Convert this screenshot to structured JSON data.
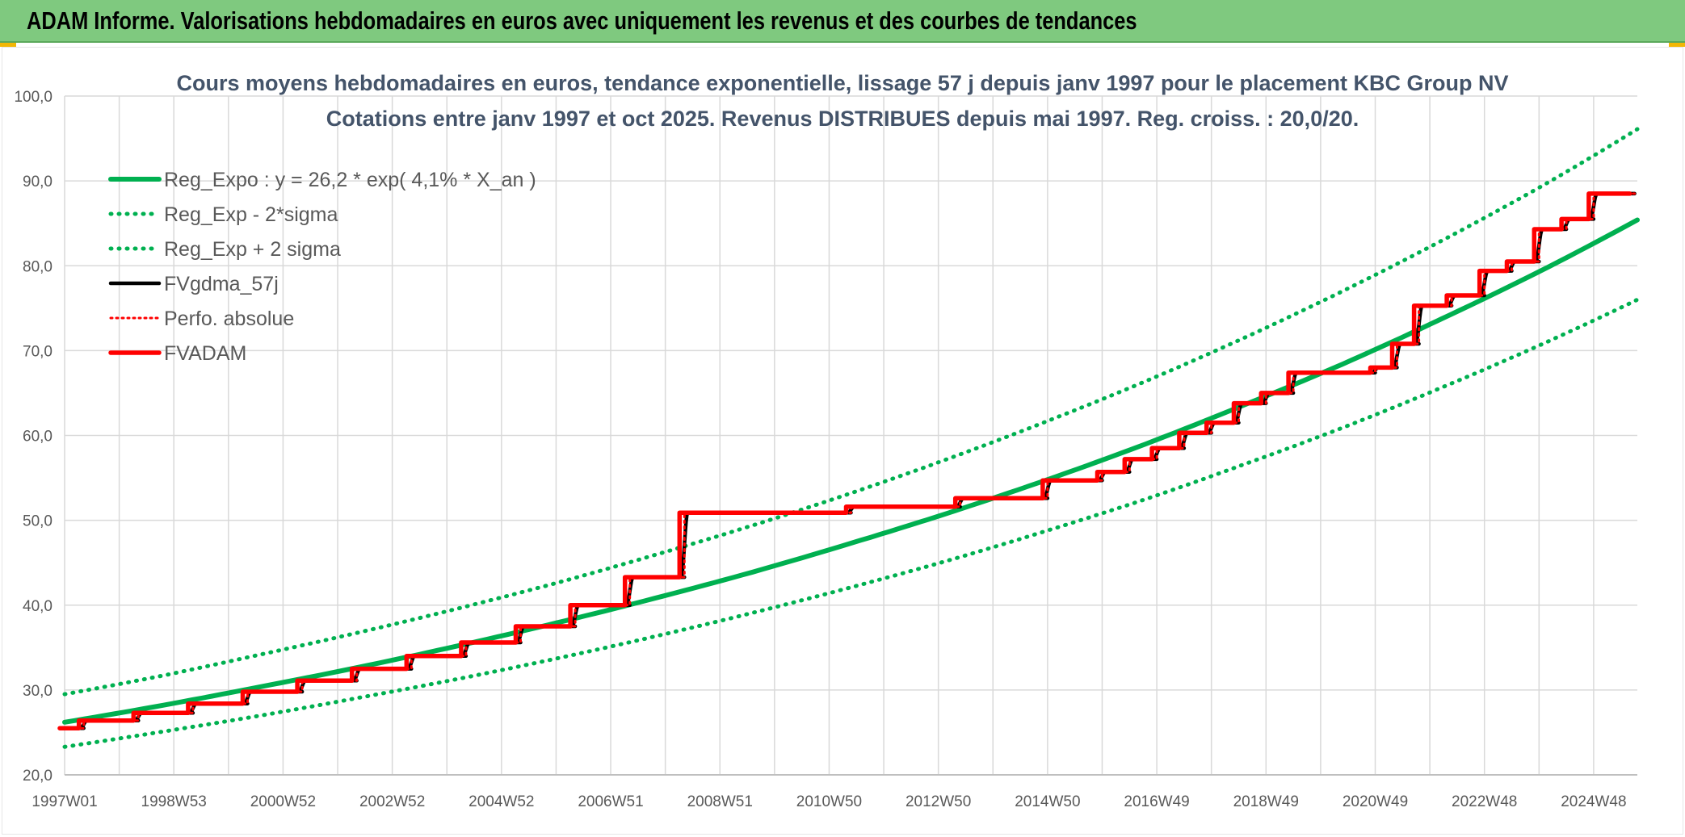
{
  "header": {
    "title": "ADAM Informe. Valorisations hebdomadaires en euros avec uniquement les revenus et des courbes de tendances"
  },
  "colors": {
    "header_bg": "#7fc97f",
    "green": "#00b050",
    "red": "#ff0000",
    "black": "#000000",
    "grid": "#d9d9d9",
    "title": "#44546a",
    "corner": "#f2b705"
  },
  "chart_data": {
    "type": "line",
    "title": "Cours moyens hebdomadaires en euros, tendance exponentielle, lissage 57 j depuis janv 1997 pour le placement KBC Group NV",
    "subtitle": "Cotations entre janv 1997 et oct 2025. Revenus DISTRIBUES depuis mai 1997. Reg. croiss. : 20,0/20.",
    "xlabel": "",
    "ylabel": "",
    "x_range": [
      1997.0,
      2025.8
    ],
    "ylim": [
      20,
      100
    ],
    "y_ticks": [
      "20,0",
      "30,0",
      "40,0",
      "50,0",
      "60,0",
      "70,0",
      "80,0",
      "90,0",
      "100,0"
    ],
    "x_ticks": [
      {
        "label": "1997W01",
        "x": 1997.0
      },
      {
        "label": "1998W53",
        "x": 1999.0
      },
      {
        "label": "2000W52",
        "x": 2001.0
      },
      {
        "label": "2002W52",
        "x": 2003.0
      },
      {
        "label": "2004W52",
        "x": 2005.0
      },
      {
        "label": "2006W51",
        "x": 2007.0
      },
      {
        "label": "2008W51",
        "x": 2009.0
      },
      {
        "label": "2010W50",
        "x": 2011.0
      },
      {
        "label": "2012W50",
        "x": 2013.0
      },
      {
        "label": "2014W50",
        "x": 2015.0
      },
      {
        "label": "2016W49",
        "x": 2017.0
      },
      {
        "label": "2018W49",
        "x": 2019.0
      },
      {
        "label": "2020W49",
        "x": 2021.0
      },
      {
        "label": "2022W48",
        "x": 2023.0
      },
      {
        "label": "2024W48",
        "x": 2025.0
      }
    ],
    "grid": true,
    "legend_position": "top-left",
    "regression": {
      "a": 26.2,
      "b": 0.041
    },
    "series": [
      {
        "name": "Reg_Expo : y = 26,2 * exp( 4,1% *  X_an )",
        "style": "solid",
        "color": "#00b050",
        "x": [
          1997.0,
          1998.8,
          2000.6,
          2002.4,
          2004.2,
          2006.0,
          2007.8,
          2009.6,
          2011.4,
          2013.2,
          2015.0,
          2016.8,
          2018.6,
          2020.4,
          2022.2,
          2024.0,
          2025.8
        ],
        "y": [
          26.2,
          28.2,
          30.4,
          32.7,
          35.2,
          37.9,
          40.8,
          43.9,
          47.3,
          50.9,
          54.8,
          59.0,
          63.6,
          68.4,
          73.7,
          79.3,
          85.4
        ]
      },
      {
        "name": "Reg_Exp - 2*sigma",
        "style": "dotted",
        "color": "#00b050",
        "x": [
          1997.0,
          1998.8,
          2000.6,
          2002.4,
          2004.2,
          2006.0,
          2007.8,
          2009.6,
          2011.4,
          2013.2,
          2015.0,
          2016.8,
          2018.6,
          2020.4,
          2022.2,
          2024.0,
          2025.8
        ],
        "y": [
          23.3,
          25.1,
          27.0,
          29.1,
          31.3,
          33.7,
          36.3,
          39.1,
          42.1,
          45.3,
          48.8,
          52.5,
          56.6,
          60.9,
          65.6,
          70.6,
          76.0
        ]
      },
      {
        "name": "Reg_Exp + 2 sigma",
        "style": "dotted",
        "color": "#00b050",
        "x": [
          1997.0,
          1998.8,
          2000.6,
          2002.4,
          2004.2,
          2006.0,
          2007.8,
          2009.6,
          2011.4,
          2013.2,
          2015.0,
          2016.8,
          2018.6,
          2020.4,
          2022.2,
          2024.0,
          2025.8
        ],
        "y": [
          29.5,
          31.7,
          34.2,
          36.8,
          39.6,
          42.6,
          45.9,
          49.4,
          53.2,
          57.3,
          61.7,
          66.4,
          71.5,
          77.0,
          82.9,
          89.2,
          96.1
        ]
      },
      {
        "name": "FVgdma_57j",
        "style": "solid",
        "color": "#000000",
        "steps": [
          {
            "x": 1997.0,
            "y": 25.5
          },
          {
            "x": 1997.35,
            "y": 26.4
          },
          {
            "x": 1998.35,
            "y": 27.3
          },
          {
            "x": 1999.35,
            "y": 28.4
          },
          {
            "x": 2000.35,
            "y": 29.8
          },
          {
            "x": 2001.35,
            "y": 31.1
          },
          {
            "x": 2002.35,
            "y": 32.5
          },
          {
            "x": 2003.35,
            "y": 34.0
          },
          {
            "x": 2004.35,
            "y": 35.6
          },
          {
            "x": 2005.35,
            "y": 37.5
          },
          {
            "x": 2006.35,
            "y": 40.0
          },
          {
            "x": 2007.35,
            "y": 43.3
          },
          {
            "x": 2008.35,
            "y": 50.9
          },
          {
            "x": 2011.4,
            "y": 51.6
          },
          {
            "x": 2013.4,
            "y": 52.6
          },
          {
            "x": 2015.0,
            "y": 54.7
          },
          {
            "x": 2016.0,
            "y": 55.7
          },
          {
            "x": 2016.5,
            "y": 57.2
          },
          {
            "x": 2017.0,
            "y": 58.5
          },
          {
            "x": 2017.5,
            "y": 60.3
          },
          {
            "x": 2018.0,
            "y": 61.5
          },
          {
            "x": 2018.5,
            "y": 63.8
          },
          {
            "x": 2019.0,
            "y": 65.0
          },
          {
            "x": 2019.5,
            "y": 67.4
          },
          {
            "x": 2021.0,
            "y": 68.0
          },
          {
            "x": 2021.4,
            "y": 70.8
          },
          {
            "x": 2021.8,
            "y": 75.3
          },
          {
            "x": 2022.4,
            "y": 76.5
          },
          {
            "x": 2023.0,
            "y": 79.4
          },
          {
            "x": 2023.5,
            "y": 80.5
          },
          {
            "x": 2024.0,
            "y": 84.3
          },
          {
            "x": 2024.5,
            "y": 85.5
          },
          {
            "x": 2025.0,
            "y": 88.5
          }
        ]
      },
      {
        "name": "Perfo. absolue",
        "style": "dotted",
        "color": "#ff0000",
        "steps": [
          {
            "x": 1997.0,
            "y": 25.5
          },
          {
            "x": 1997.35,
            "y": 26.4
          },
          {
            "x": 1998.35,
            "y": 27.3
          },
          {
            "x": 1999.35,
            "y": 28.4
          },
          {
            "x": 2000.35,
            "y": 29.8
          },
          {
            "x": 2001.35,
            "y": 31.1
          },
          {
            "x": 2002.35,
            "y": 32.5
          },
          {
            "x": 2003.35,
            "y": 34.0
          },
          {
            "x": 2004.35,
            "y": 35.6
          },
          {
            "x": 2005.35,
            "y": 37.5
          },
          {
            "x": 2006.35,
            "y": 40.0
          },
          {
            "x": 2007.35,
            "y": 43.3
          },
          {
            "x": 2008.35,
            "y": 50.9
          },
          {
            "x": 2011.4,
            "y": 51.6
          },
          {
            "x": 2013.4,
            "y": 52.6
          },
          {
            "x": 2015.0,
            "y": 54.7
          },
          {
            "x": 2016.0,
            "y": 55.7
          },
          {
            "x": 2016.5,
            "y": 57.2
          },
          {
            "x": 2017.0,
            "y": 58.5
          },
          {
            "x": 2017.5,
            "y": 60.3
          },
          {
            "x": 2018.0,
            "y": 61.5
          },
          {
            "x": 2018.5,
            "y": 63.8
          },
          {
            "x": 2019.0,
            "y": 65.0
          },
          {
            "x": 2019.5,
            "y": 67.4
          },
          {
            "x": 2021.0,
            "y": 68.0
          },
          {
            "x": 2021.4,
            "y": 70.8
          },
          {
            "x": 2021.8,
            "y": 75.3
          },
          {
            "x": 2022.4,
            "y": 76.5
          },
          {
            "x": 2023.0,
            "y": 79.4
          },
          {
            "x": 2023.5,
            "y": 80.5
          },
          {
            "x": 2024.0,
            "y": 84.3
          },
          {
            "x": 2024.5,
            "y": 85.5
          },
          {
            "x": 2025.0,
            "y": 88.5
          }
        ]
      },
      {
        "name": "FVADAM",
        "style": "solid",
        "color": "#ff0000",
        "steps": [
          {
            "x": 1997.0,
            "y": 25.5
          },
          {
            "x": 1997.35,
            "y": 26.4
          },
          {
            "x": 1998.35,
            "y": 27.3
          },
          {
            "x": 1999.35,
            "y": 28.4
          },
          {
            "x": 2000.35,
            "y": 29.8
          },
          {
            "x": 2001.35,
            "y": 31.1
          },
          {
            "x": 2002.35,
            "y": 32.5
          },
          {
            "x": 2003.35,
            "y": 34.0
          },
          {
            "x": 2004.35,
            "y": 35.6
          },
          {
            "x": 2005.35,
            "y": 37.5
          },
          {
            "x": 2006.35,
            "y": 40.0
          },
          {
            "x": 2007.35,
            "y": 43.3
          },
          {
            "x": 2008.35,
            "y": 50.9
          },
          {
            "x": 2011.4,
            "y": 51.6
          },
          {
            "x": 2013.4,
            "y": 52.6
          },
          {
            "x": 2015.0,
            "y": 54.7
          },
          {
            "x": 2016.0,
            "y": 55.7
          },
          {
            "x": 2016.5,
            "y": 57.2
          },
          {
            "x": 2017.0,
            "y": 58.5
          },
          {
            "x": 2017.5,
            "y": 60.3
          },
          {
            "x": 2018.0,
            "y": 61.5
          },
          {
            "x": 2018.5,
            "y": 63.8
          },
          {
            "x": 2019.0,
            "y": 65.0
          },
          {
            "x": 2019.5,
            "y": 67.4
          },
          {
            "x": 2021.0,
            "y": 68.0
          },
          {
            "x": 2021.4,
            "y": 70.8
          },
          {
            "x": 2021.8,
            "y": 75.3
          },
          {
            "x": 2022.4,
            "y": 76.5
          },
          {
            "x": 2023.0,
            "y": 79.4
          },
          {
            "x": 2023.5,
            "y": 80.5
          },
          {
            "x": 2024.0,
            "y": 84.3
          },
          {
            "x": 2024.5,
            "y": 85.5
          },
          {
            "x": 2025.0,
            "y": 88.5
          }
        ]
      }
    ]
  }
}
